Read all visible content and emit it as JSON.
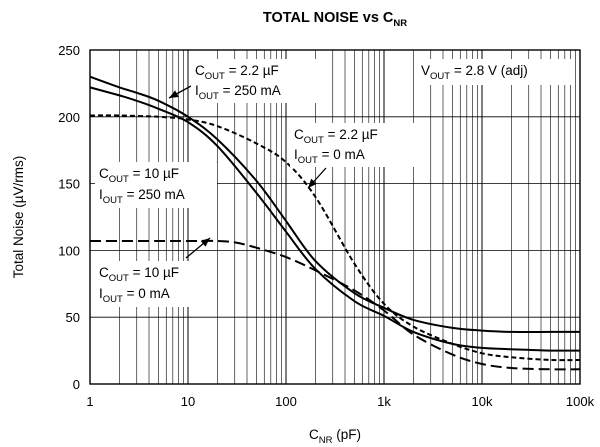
{
  "chart_data": {
    "type": "line",
    "title": {
      "main": "TOTAL NOISE vs C",
      "sub": "NR"
    },
    "xlabel": {
      "main": "C",
      "sub": "NR",
      "unit": " (pF)"
    },
    "ylabel": "Total Noise (µV/rms)",
    "x_scale": "log",
    "xlim": [
      1,
      100000
    ],
    "ylim": [
      0,
      250
    ],
    "grid": true,
    "x_ticks": [
      "1",
      "10",
      "100",
      "1k",
      "10k",
      "100k"
    ],
    "y_ticks": [
      "0",
      "50",
      "100",
      "150",
      "200",
      "250"
    ],
    "x_tick_values": [
      1,
      10,
      100,
      1000,
      10000,
      100000
    ],
    "y_tick_values": [
      0,
      50,
      100,
      150,
      200,
      250
    ],
    "series": [
      {
        "style": "solid",
        "points": [
          [
            1,
            230
          ],
          [
            2,
            222
          ],
          [
            3,
            218
          ],
          [
            5,
            212
          ],
          [
            10,
            200
          ],
          [
            20,
            183
          ],
          [
            50,
            152
          ],
          [
            100,
            122
          ],
          [
            200,
            92
          ],
          [
            500,
            68
          ],
          [
            1000,
            57
          ],
          [
            2000,
            48
          ],
          [
            5000,
            42
          ],
          [
            10000,
            40
          ],
          [
            20000,
            39
          ],
          [
            50000,
            39
          ],
          [
            100000,
            39
          ]
        ]
      },
      {
        "style": "solid",
        "points": [
          [
            1,
            222
          ],
          [
            2,
            216
          ],
          [
            3,
            212
          ],
          [
            5,
            206
          ],
          [
            10,
            196
          ],
          [
            20,
            178
          ],
          [
            50,
            143
          ],
          [
            100,
            114
          ],
          [
            200,
            86
          ],
          [
            500,
            62
          ],
          [
            1000,
            51
          ],
          [
            2000,
            39
          ],
          [
            5000,
            30
          ],
          [
            10000,
            27
          ],
          [
            20000,
            26
          ],
          [
            50000,
            25
          ],
          [
            100000,
            25
          ]
        ]
      },
      {
        "style": "short-dash",
        "points": [
          [
            1,
            201
          ],
          [
            2,
            201
          ],
          [
            5,
            200
          ],
          [
            10,
            198
          ],
          [
            20,
            193
          ],
          [
            50,
            180
          ],
          [
            100,
            166
          ],
          [
            200,
            140
          ],
          [
            500,
            90
          ],
          [
            1000,
            60
          ],
          [
            2000,
            43
          ],
          [
            5000,
            30
          ],
          [
            10000,
            23
          ],
          [
            20000,
            20
          ],
          [
            50000,
            18
          ],
          [
            100000,
            18
          ]
        ]
      },
      {
        "style": "long-dash",
        "points": [
          [
            1,
            107
          ],
          [
            2,
            107
          ],
          [
            5,
            107
          ],
          [
            10,
            107
          ],
          [
            20,
            107
          ],
          [
            30,
            106
          ],
          [
            50,
            102
          ],
          [
            100,
            95
          ],
          [
            200,
            85
          ],
          [
            500,
            70
          ],
          [
            1000,
            55
          ],
          [
            2000,
            37
          ],
          [
            5000,
            22
          ],
          [
            10000,
            15
          ],
          [
            20000,
            12
          ],
          [
            50000,
            11
          ],
          [
            100000,
            11
          ]
        ]
      }
    ],
    "annotations": [
      {
        "id": "cout22-iout250",
        "lines": [
          {
            "main": "C",
            "sub": "OUT",
            "rest": " = 2.2 µF"
          },
          {
            "main": "I",
            "sub": "OUT",
            "rest": " = 250 mA"
          }
        ]
      },
      {
        "id": "cout22-iout0",
        "lines": [
          {
            "main": "C",
            "sub": "OUT",
            "rest": " = 2.2 µF"
          },
          {
            "main": "I",
            "sub": "OUT",
            "rest": " = 0 mA"
          }
        ]
      },
      {
        "id": "cout10-iout250",
        "lines": [
          {
            "main": "C",
            "sub": "OUT",
            "rest": " = 10 µF"
          },
          {
            "main": "I",
            "sub": "OUT",
            "rest": " = 250 mA"
          }
        ]
      },
      {
        "id": "cout10-iout0",
        "lines": [
          {
            "main": "C",
            "sub": "OUT",
            "rest": " = 10 µF"
          },
          {
            "main": "I",
            "sub": "OUT",
            "rest": " = 0 mA"
          }
        ]
      },
      {
        "id": "vout",
        "lines": [
          {
            "main": "V",
            "sub": "OUT",
            "rest": " = 2.8 V (adj)"
          }
        ]
      }
    ]
  }
}
